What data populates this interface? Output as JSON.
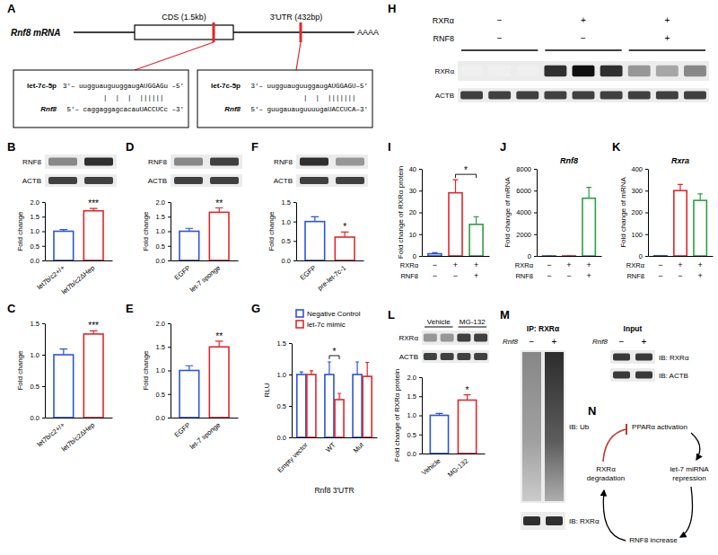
{
  "panel_labels": [
    "A",
    "B",
    "C",
    "D",
    "E",
    "F",
    "G",
    "H",
    "I",
    "J",
    "K",
    "L",
    "M",
    "N"
  ],
  "schematic": {
    "transcript": "Rnf8 mRNA",
    "cds": "CDS (1.5kb)",
    "utr": "3'UTR (432bp)",
    "polya": "AAAA",
    "sites": [
      {
        "mirna": "let-7c-5p",
        "mirna_seq": "3'– uugguauguuggaugAUGGAGu –5'",
        "pairing": "|  |  |  ||||||     ",
        "target": "Rnf8",
        "target_seq": "5'– caggaggagcacauUACCUCc –3'"
      },
      {
        "mirna": "let-7c-5p",
        "mirna_seq": "3'– uugguauguuggaugAUGGAGU–5'",
        "pairing": "|  |  |||||||   ",
        "target": "Rnf8",
        "target_seq": "5'– guugauauguuuugaUACCUCA–3'"
      }
    ]
  },
  "blots": [
    {
      "rows": [
        "RNF8",
        "ACTB"
      ]
    },
    {
      "rows": [
        "RNF8",
        "ACTB"
      ]
    },
    {
      "rows": [
        "RNF8",
        "ACTB"
      ]
    },
    {
      "conditions": [
        {
          "name": "RXRα",
          "values": [
            "−",
            "+",
            "+"
          ]
        },
        {
          "name": "RNF8",
          "values": [
            "−",
            "−",
            "+"
          ]
        }
      ],
      "rows": [
        "RXRα",
        "ACTB"
      ]
    },
    {
      "headers": [
        "Vehicle",
        "MG-132"
      ],
      "rows": [
        "RXRα",
        "ACTB"
      ]
    }
  ],
  "ip_blot": {
    "title": "IP: RXRα",
    "factor": "Rnf8",
    "lanes": [
      "−",
      "+"
    ],
    "rows": [
      "IB: Ub",
      "IB: RXRα"
    ],
    "input_title": "Input",
    "input_rows": [
      "IB: RXRα",
      "IB: ACTB"
    ]
  },
  "diagram": {
    "nodes": [
      "PPARα activation",
      "let-7 miRNA repression",
      "RNF8 increase",
      "RXRα degradation"
    ]
  },
  "chart_data": [
    {
      "type": "bar",
      "ylabel": "Fold change",
      "categories": [
        "let7b/c2+/+",
        "let7b/c2ΔHep"
      ],
      "values": [
        1.0,
        1.7
      ],
      "errors": [
        0.06,
        0.08
      ],
      "colors": [
        "#2b55d6",
        "#e3262b"
      ],
      "ylim": [
        0,
        2
      ],
      "yticks": [
        {
          "value": 0,
          "label": "0.0"
        },
        0.5,
        {
          "value": 1,
          "label": "1.0"
        },
        1.5,
        {
          "value": 2,
          "label": "2.0"
        }
      ],
      "annotations": [
        {
          "text": "***",
          "at": [
            1
          ]
        }
      ]
    },
    {
      "type": "bar",
      "ylabel": "Fold change",
      "categories": [
        "let7b/c2+/+",
        "let7b/c2ΔHep"
      ],
      "values": [
        1.0,
        1.33
      ],
      "errors": [
        0.09,
        0.05
      ],
      "colors": [
        "#2b55d6",
        "#e3262b"
      ],
      "ylim": [
        0,
        1.5
      ],
      "yticks": [
        {
          "value": 0,
          "label": "0.0"
        },
        0.5,
        {
          "value": 1,
          "label": "1.0"
        },
        1.5
      ],
      "annotations": [
        {
          "text": "***",
          "at": [
            1
          ]
        }
      ]
    },
    {
      "type": "bar",
      "ylabel": "Fold change",
      "categories": [
        "EGFP",
        "let-7 sponge"
      ],
      "values": [
        1.0,
        1.65
      ],
      "errors": [
        0.1,
        0.15
      ],
      "colors": [
        "#2b55d6",
        "#e3262b"
      ],
      "ylim": [
        0,
        2
      ],
      "yticks": [
        {
          "value": 0,
          "label": "0.0"
        },
        0.5,
        {
          "value": 1,
          "label": "1.0"
        },
        1.5,
        {
          "value": 2,
          "label": "2.0"
        }
      ],
      "annotations": [
        {
          "text": "**",
          "at": [
            1
          ]
        }
      ]
    },
    {
      "type": "bar",
      "ylabel": "Fold change",
      "categories": [
        "EGFP",
        "let-7 sponge"
      ],
      "values": [
        1.0,
        1.5
      ],
      "errors": [
        0.1,
        0.12
      ],
      "colors": [
        "#2b55d6",
        "#e3262b"
      ],
      "ylim": [
        0,
        2
      ],
      "yticks": [
        {
          "value": 0,
          "label": "0.0"
        },
        0.5,
        {
          "value": 1,
          "label": "1.0"
        },
        1.5,
        {
          "value": 2,
          "label": "2.0"
        }
      ],
      "annotations": [
        {
          "text": "**",
          "at": [
            1
          ]
        }
      ]
    },
    {
      "type": "bar",
      "ylabel": "Fold change",
      "categories": [
        "EGFP",
        "pre-let-7c-1"
      ],
      "values": [
        1.0,
        0.6
      ],
      "errors": [
        0.12,
        0.13
      ],
      "colors": [
        "#2b55d6",
        "#e3262b"
      ],
      "ylim": [
        0,
        1.5
      ],
      "yticks": [
        {
          "value": 0,
          "label": "0.0"
        },
        0.5,
        {
          "value": 1,
          "label": "1.0"
        },
        1.5
      ],
      "annotations": [
        {
          "text": "*",
          "at": [
            1
          ]
        }
      ]
    },
    {
      "type": "bar",
      "ylabel": "RLU",
      "xlabel": "Rnf8 3'UTR",
      "categories": [
        "Empty vector",
        "WT",
        "Mut"
      ],
      "series": [
        {
          "name": "Negative Control",
          "color": "#2b55d6",
          "values": [
            1.0,
            1.0,
            1.0
          ],
          "errors": [
            0.04,
            0.2,
            0.2
          ]
        },
        {
          "name": "let-7c mimic",
          "color": "#e3262b",
          "values": [
            1.0,
            0.6,
            0.97
          ],
          "errors": [
            0.06,
            0.1,
            0.22
          ]
        }
      ],
      "legend": "top",
      "ylim": [
        0,
        1.5
      ],
      "yticks": [
        {
          "value": 0,
          "label": "0.0"
        },
        0.5,
        {
          "value": 1,
          "label": "1.0"
        },
        1.5
      ],
      "annotations": [
        {
          "text": "*",
          "at": [
            1
          ]
        }
      ]
    },
    {
      "type": "bar",
      "ylabel": "Fold change of RXRα protein",
      "categories": [
        null,
        null,
        null
      ],
      "values": [
        1,
        29,
        14.5
      ],
      "errors": [
        0.5,
        6,
        3.5
      ],
      "colors": [
        "#2b55d6",
        "#e3262b",
        "#2ea043"
      ],
      "ylim": [
        0,
        40
      ],
      "yticks": [
        0,
        10,
        20,
        30,
        40
      ],
      "conditions": [
        {
          "name": "RXRα",
          "values": [
            "−",
            "+",
            "+"
          ]
        },
        {
          "name": "RNF8",
          "values": [
            "−",
            "−",
            "+"
          ]
        }
      ],
      "annotations": [
        {
          "text": "*",
          "at": [
            1,
            2
          ]
        }
      ]
    },
    {
      "type": "bar",
      "title": "Rnf8",
      "ylabel": "Fold change of mRNA",
      "categories": [
        null,
        null,
        null
      ],
      "values": [
        1,
        1,
        5300
      ],
      "errors": [
        0,
        0,
        1000
      ],
      "colors": [
        "#2b55d6",
        "#e3262b",
        "#2ea043"
      ],
      "ylim": [
        0,
        8000
      ],
      "yticks": [
        0,
        2000,
        4000,
        6000,
        8000
      ],
      "conditions": [
        {
          "name": "RXRα",
          "values": [
            "−",
            "+",
            "+"
          ]
        },
        {
          "name": "RNF8",
          "values": [
            "−",
            "−",
            "+"
          ]
        }
      ]
    },
    {
      "type": "bar",
      "title": "Rxra",
      "ylabel": "Fold change of mRNA",
      "categories": [
        null,
        null,
        null
      ],
      "values": [
        1,
        300,
        255
      ],
      "errors": [
        0,
        28,
        30
      ],
      "colors": [
        "#2b55d6",
        "#e3262b",
        "#2ea043"
      ],
      "ylim": [
        0,
        400
      ],
      "yticks": [
        0,
        100,
        200,
        300,
        400
      ],
      "conditions": [
        {
          "name": "RXRα",
          "values": [
            "−",
            "+",
            "+"
          ]
        },
        {
          "name": "RNF8",
          "values": [
            "−",
            "−",
            "+"
          ]
        }
      ]
    },
    {
      "type": "bar",
      "ylabel": "Fold change of RXRα protein",
      "categories": [
        "Vehicle",
        "MG-132"
      ],
      "values": [
        1.0,
        1.4
      ],
      "errors": [
        0.05,
        0.14
      ],
      "colors": [
        "#2b55d6",
        "#e3262b"
      ],
      "ylim": [
        0,
        2
      ],
      "yticks": [
        {
          "value": 0,
          "label": "0.0"
        },
        0.5,
        {
          "value": 1,
          "label": "1.0"
        },
        1.5,
        {
          "value": 2,
          "label": "2.0"
        }
      ],
      "annotations": [
        {
          "text": "*",
          "at": [
            1
          ]
        }
      ]
    }
  ]
}
